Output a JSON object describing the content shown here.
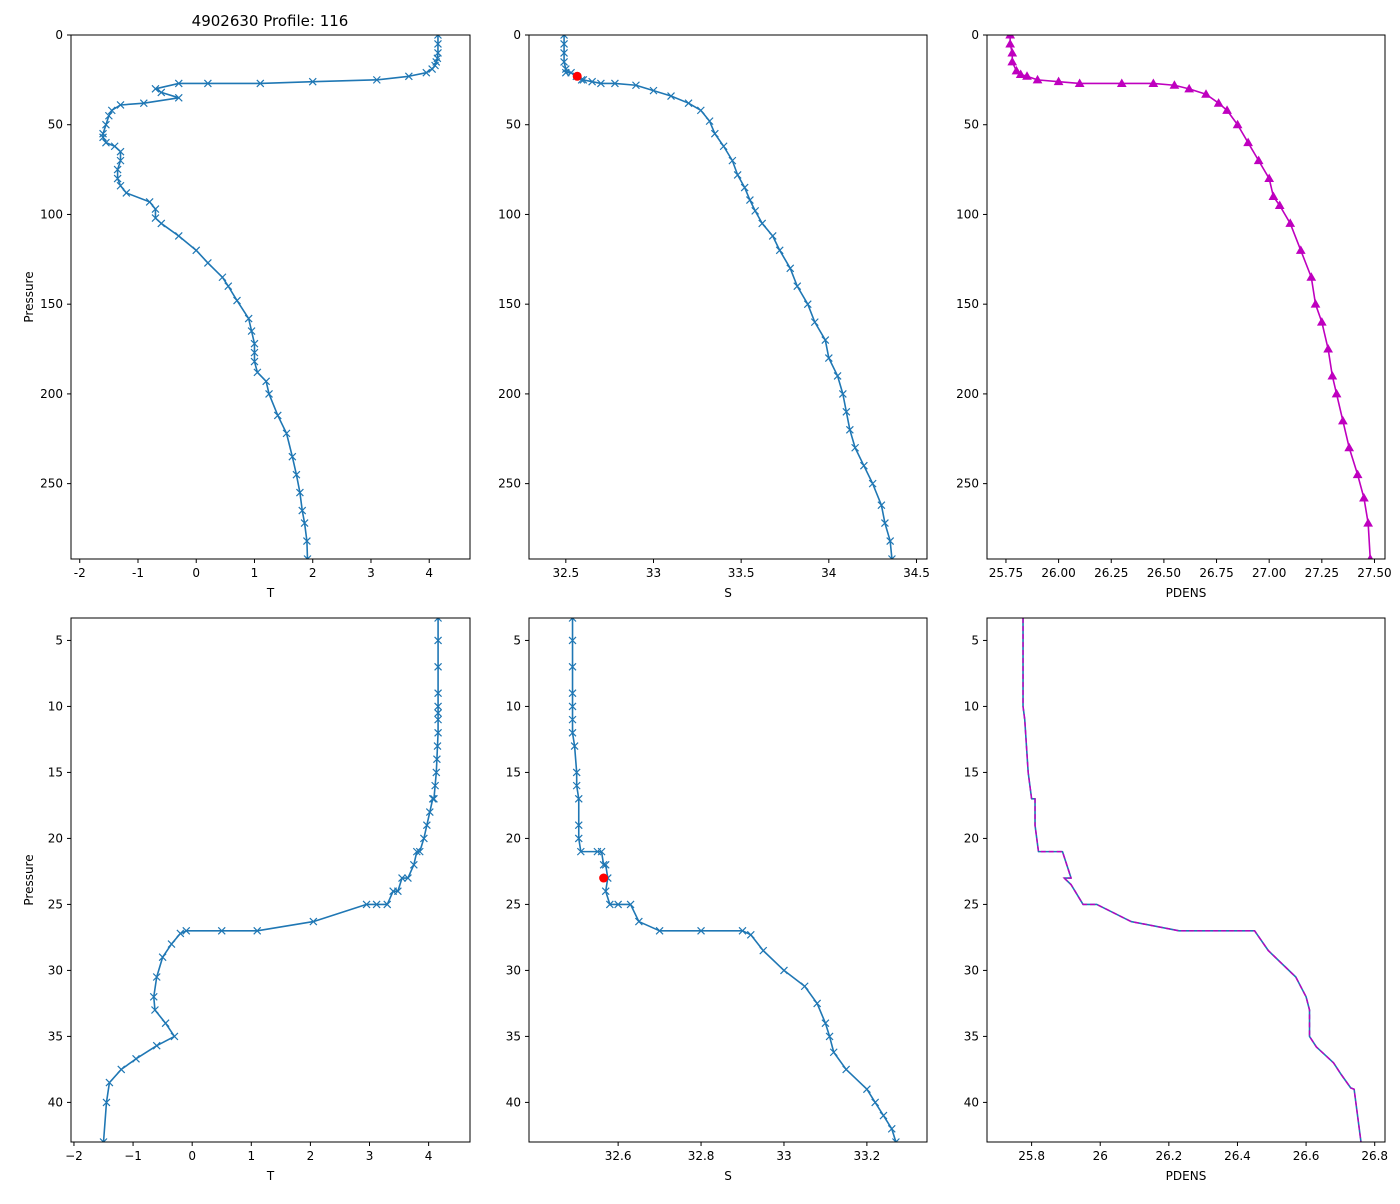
{
  "figure_title": "4902630 Profile: 116",
  "colors": {
    "series": "#1f77b4",
    "pdens_top": "#bf00bf",
    "pdens_dash": "#bf00bf",
    "flag": "#ff0000",
    "axis": "#000000"
  },
  "chart_data": [
    {
      "type": "line",
      "id": "top-t",
      "xlabel": "T",
      "ylabel": "Pressure",
      "xlim": [
        -2.15,
        4.7
      ],
      "ylim": [
        292,
        0
      ],
      "xticks": [
        -2,
        -1,
        0,
        1,
        2,
        3,
        4
      ],
      "yticks": [
        0,
        50,
        100,
        150,
        200,
        250
      ],
      "marker": "x",
      "x": [
        4.15,
        4.15,
        4.15,
        4.14,
        4.12,
        4.1,
        4.05,
        3.95,
        3.65,
        3.1,
        2.0,
        1.1,
        0.2,
        -0.3,
        -0.7,
        -0.6,
        -0.3,
        -0.9,
        -1.3,
        -1.45,
        -1.5,
        -1.55,
        -1.6,
        -1.6,
        -1.55,
        -1.4,
        -1.3,
        -1.3,
        -1.35,
        -1.35,
        -1.3,
        -1.2,
        -0.8,
        -0.7,
        -0.7,
        -0.6,
        -0.3,
        0.0,
        0.2,
        0.45,
        0.55,
        0.7,
        0.9,
        0.95,
        1.0,
        1.0,
        1.0,
        1.05,
        1.2,
        1.25,
        1.4,
        1.55,
        1.65,
        1.72,
        1.78,
        1.82,
        1.86,
        1.9,
        1.91
      ],
      "y": [
        0,
        5,
        10,
        13,
        15,
        17,
        19,
        21,
        23,
        25,
        26,
        27,
        27,
        27,
        30,
        32,
        35,
        38,
        39,
        42,
        45,
        50,
        55,
        57,
        60,
        62,
        65,
        70,
        75,
        80,
        84,
        88,
        93,
        97,
        102,
        105,
        112,
        120,
        127,
        135,
        140,
        148,
        158,
        165,
        172,
        177,
        182,
        188,
        193,
        200,
        212,
        222,
        235,
        245,
        255,
        265,
        272,
        282,
        292
      ]
    },
    {
      "type": "line",
      "id": "top-s",
      "xlabel": "S",
      "ylabel": "",
      "xlim": [
        32.29,
        34.56
      ],
      "ylim": [
        292,
        0
      ],
      "xticks": [
        32.5,
        33.0,
        33.5,
        34.0,
        34.5
      ],
      "yticks": [
        0,
        50,
        100,
        150,
        200,
        250
      ],
      "marker": "x",
      "flag": {
        "x": 32.565,
        "y": 23
      },
      "x": [
        32.49,
        32.49,
        32.49,
        32.49,
        32.5,
        32.5,
        32.53,
        32.56,
        32.59,
        32.6,
        32.65,
        32.7,
        32.78,
        32.9,
        33.0,
        33.1,
        33.2,
        33.27,
        33.32,
        33.35,
        33.4,
        33.45,
        33.48,
        33.52,
        33.55,
        33.58,
        33.62,
        33.68,
        33.72,
        33.78,
        33.82,
        33.88,
        33.92,
        33.98,
        34.0,
        34.05,
        34.08,
        34.1,
        34.12,
        34.15,
        34.2,
        34.25,
        34.3,
        34.32,
        34.35,
        34.36
      ],
      "y": [
        0,
        5,
        10,
        15,
        19,
        21,
        21,
        23,
        25,
        25,
        26,
        27,
        27,
        28,
        31,
        34,
        38,
        42,
        48,
        55,
        62,
        70,
        78,
        85,
        92,
        98,
        105,
        112,
        120,
        130,
        140,
        150,
        160,
        170,
        180,
        190,
        200,
        210,
        220,
        230,
        240,
        250,
        262,
        272,
        282,
        292
      ]
    },
    {
      "type": "line",
      "id": "top-pdens",
      "xlabel": "PDENS",
      "ylabel": "",
      "xlim": [
        25.66,
        27.55
      ],
      "ylim": [
        292,
        0
      ],
      "xticks": [
        25.75,
        26.0,
        26.25,
        26.5,
        26.75,
        27.0,
        27.25,
        27.5
      ],
      "xticklabels": [
        "25.75",
        "26.00",
        "26.25",
        "26.50",
        "26.75",
        "27.00",
        "27.25",
        "27.50"
      ],
      "yticks": [
        0,
        50,
        100,
        150,
        200,
        250
      ],
      "marker": "triangle",
      "x": [
        25.77,
        25.77,
        25.78,
        25.78,
        25.8,
        25.82,
        25.85,
        25.9,
        26.0,
        26.1,
        26.3,
        26.45,
        26.55,
        26.62,
        26.7,
        26.76,
        26.8,
        26.85,
        26.9,
        26.95,
        27.0,
        27.02,
        27.05,
        27.1,
        27.15,
        27.2,
        27.22,
        27.25,
        27.28,
        27.3,
        27.32,
        27.35,
        27.38,
        27.42,
        27.45,
        27.47,
        27.48
      ],
      "y": [
        0,
        5,
        10,
        15,
        20,
        22,
        23,
        25,
        26,
        27,
        27,
        27,
        28,
        30,
        33,
        38,
        42,
        50,
        60,
        70,
        80,
        90,
        95,
        105,
        120,
        135,
        150,
        160,
        175,
        190,
        200,
        215,
        230,
        245,
        258,
        272,
        292
      ]
    },
    {
      "type": "line",
      "id": "bottom-t",
      "xlabel": "T",
      "ylabel": "Pressure",
      "xlim": [
        -2.05,
        4.7
      ],
      "ylim": [
        43,
        3.3
      ],
      "xticks": [
        -2,
        -1,
        0,
        1,
        2,
        3,
        4
      ],
      "xticklabels": [
        "−2",
        "−1",
        "0",
        "1",
        "2",
        "3",
        "4"
      ],
      "yticks": [
        5,
        10,
        15,
        20,
        25,
        30,
        35,
        40
      ],
      "marker": "x",
      "x": [
        4.16,
        4.16,
        4.16,
        4.16,
        4.16,
        4.16,
        4.16,
        4.16,
        4.15,
        4.14,
        4.13,
        4.11,
        4.09,
        4.07,
        4.02,
        3.97,
        3.92,
        3.85,
        3.8,
        3.75,
        3.65,
        3.55,
        3.48,
        3.4,
        3.3,
        3.12,
        2.95,
        2.05,
        1.1,
        0.5,
        -0.1,
        -0.2,
        -0.35,
        -0.5,
        -0.6,
        -0.65,
        -0.63,
        -0.45,
        -0.3,
        -0.6,
        -0.95,
        -1.2,
        -1.4,
        -1.45,
        -1.5
      ],
      "y": [
        3.3,
        5,
        7,
        9,
        10,
        10.5,
        11,
        12,
        13,
        14,
        15,
        16,
        17,
        17,
        18,
        19,
        20,
        21,
        21,
        22,
        23,
        23,
        24,
        24,
        25,
        25,
        25,
        26.3,
        27,
        27,
        27,
        27.2,
        28,
        29,
        30.5,
        32,
        33,
        34,
        35,
        35.7,
        36.7,
        37.5,
        38.5,
        40,
        43
      ]
    },
    {
      "type": "line",
      "id": "bottom-s",
      "xlabel": "S",
      "ylabel": "",
      "xlim": [
        32.385,
        33.345
      ],
      "ylim": [
        43,
        3.3
      ],
      "xticks": [
        32.6,
        32.8,
        33.0,
        33.2
      ],
      "yticks": [
        5,
        10,
        15,
        20,
        25,
        30,
        35,
        40
      ],
      "marker": "x",
      "flag": {
        "x": 32.565,
        "y": 23
      },
      "x": [
        32.49,
        32.49,
        32.49,
        32.49,
        32.49,
        32.49,
        32.49,
        32.495,
        32.5,
        32.5,
        32.505,
        32.505,
        32.505,
        32.51,
        32.55,
        32.56,
        32.565,
        32.57,
        32.575,
        32.57,
        32.58,
        32.6,
        32.63,
        32.65,
        32.7,
        32.8,
        32.9,
        32.92,
        32.95,
        33.0,
        33.05,
        33.08,
        33.1,
        33.11,
        33.12,
        33.15,
        33.2,
        33.22,
        33.24,
        33.26,
        33.27
      ],
      "y": [
        3.3,
        5,
        7,
        9,
        10,
        11,
        12,
        13,
        15,
        16,
        17,
        19,
        20,
        21,
        21,
        21,
        22,
        22,
        23,
        24,
        25,
        25,
        25,
        26.3,
        27,
        27,
        27,
        27.3,
        28.5,
        30,
        31.2,
        32.5,
        34,
        35,
        36.2,
        37.5,
        39,
        40,
        41,
        42,
        43
      ]
    },
    {
      "type": "line",
      "id": "bottom-pdens",
      "xlabel": "PDENS",
      "ylabel": "",
      "xlim": [
        25.67,
        26.83
      ],
      "ylim": [
        43,
        3.3
      ],
      "xticks": [
        25.8,
        26.0,
        26.2,
        26.4,
        26.6,
        26.8
      ],
      "yticks": [
        5,
        10,
        15,
        20,
        25,
        30,
        35,
        40
      ],
      "marker": "none",
      "x": [
        25.775,
        25.775,
        25.775,
        25.78,
        25.79,
        25.8,
        25.81,
        25.81,
        25.82,
        25.89,
        25.915,
        25.895,
        25.915,
        25.95,
        25.99,
        26.09,
        26.23,
        26.44,
        26.45,
        26.49,
        26.57,
        26.6,
        26.61,
        26.61,
        26.63,
        26.68,
        26.7,
        26.73,
        26.74,
        26.76
      ],
      "y": [
        3.3,
        5,
        10,
        11,
        15,
        17,
        17,
        19,
        21,
        21,
        23,
        23,
        23.5,
        25,
        25,
        26.3,
        27,
        27,
        27,
        28.5,
        30.5,
        32,
        33,
        35,
        35.8,
        37,
        37.8,
        38.9,
        39,
        43
      ]
    }
  ]
}
